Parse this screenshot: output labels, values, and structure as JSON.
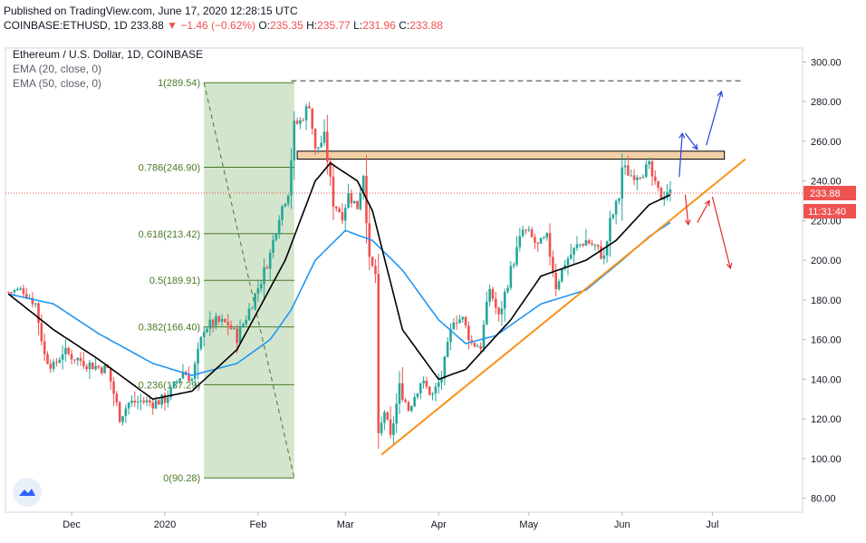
{
  "header": {
    "published": "Published on TradingView.com, June 17, 2020 12:28:15 UTC",
    "symbol": "COINBASE:ETHUSD, 1D",
    "last": "233.88",
    "change_arrow": "▼",
    "change": "−1.46 (−0.62%)",
    "o_label": "O:",
    "o_value": "235.35",
    "h_label": "H:",
    "h_value": "235.77",
    "l_label": "L:",
    "l_value": "231.96",
    "c_label": "C:",
    "c_value": "233.88"
  },
  "legend": {
    "title": "Ethereum / U.S. Dollar, 1D, COINBASE",
    "ema20": "EMA (20, close, 0)",
    "ema50": "EMA (50, close, 0)"
  },
  "badges": {
    "price": "233.88",
    "countdown": "11:31:40"
  },
  "logo_icon": "tradingview-logo-icon",
  "colors": {
    "up": "#26a69a",
    "down": "#ef5350",
    "ema20": "#000000",
    "ema50": "#2196f3",
    "trend": "#f7931a",
    "zone": "#f3cfa6",
    "fib": "#4a7a26",
    "fib_bg": "#d3e5cc",
    "arrow_up": "#2342e0",
    "arrow_down": "#e02b2b"
  },
  "chart_data": {
    "type": "candlestick",
    "title": "Ethereum / U.S. Dollar, 1D, COINBASE",
    "y_ticks": [
      80,
      100,
      120,
      140,
      160,
      180,
      200,
      220,
      240,
      260,
      280,
      300
    ],
    "y_tick_labels": [
      "80.00",
      "100.00",
      "120.00",
      "140.00",
      "160.00",
      "180.00",
      "200.00",
      "220.00",
      "240.00",
      "260.00",
      "280.00",
      "300.00"
    ],
    "ylim": [
      73,
      307
    ],
    "x_ticks": [
      {
        "date": "2019-12-01",
        "label": "Dec"
      },
      {
        "date": "2020-01-01",
        "label": "2020"
      },
      {
        "date": "2020-02-01",
        "label": "Feb"
      },
      {
        "date": "2020-03-01",
        "label": "Mar"
      },
      {
        "date": "2020-04-01",
        "label": "Apr"
      },
      {
        "date": "2020-05-01",
        "label": "May"
      },
      {
        "date": "2020-06-01",
        "label": "Jun"
      },
      {
        "date": "2020-07-01",
        "label": "Jul"
      }
    ],
    "xlim": [
      "2019-11-09",
      "2020-07-31"
    ],
    "last_price": 233.88,
    "fibonacci": {
      "start_date": "2020-01-14",
      "end_date": "2020-02-13",
      "levels": [
        {
          "ratio": "1",
          "price": 289.54,
          "label": "1(289.54)"
        },
        {
          "ratio": "0.786",
          "price": 246.9,
          "label": "0.786(246.90)"
        },
        {
          "ratio": "0.618",
          "price": 213.42,
          "label": "0.618(213.42)"
        },
        {
          "ratio": "0.5",
          "price": 189.91,
          "label": "0.5(189.91)"
        },
        {
          "ratio": "0.382",
          "price": 166.4,
          "label": "0.382(166.40)"
        },
        {
          "ratio": "0.236",
          "price": 137.29,
          "label": "0.236(137.29)"
        },
        {
          "ratio": "0",
          "price": 90.28,
          "label": "0(90.28)"
        }
      ]
    },
    "resistance_zone": {
      "start": "2020-02-14",
      "end": "2020-07-05",
      "low": 251,
      "high": 255
    },
    "dashed_high": {
      "start": "2020-02-12",
      "end": "2020-07-11",
      "price": 290.5
    },
    "trendline": {
      "start": "2020-03-13",
      "start_price": 102,
      "end": "2020-07-12",
      "end_price": 251
    },
    "arrows_up": [
      {
        "from": "2020-06-20",
        "from_price": 242,
        "to": "2020-06-21",
        "to_price": 264
      },
      {
        "from": "2020-06-22",
        "from_price": 264,
        "to": "2020-06-26",
        "to_price": 256
      },
      {
        "from": "2020-06-29",
        "from_price": 258,
        "to": "2020-07-04",
        "to_price": 285
      }
    ],
    "arrows_down": [
      {
        "from": "2020-06-22",
        "from_price": 233,
        "to": "2020-06-23",
        "to_price": 218
      },
      {
        "from": "2020-06-26",
        "from_price": 219,
        "to": "2020-06-30",
        "to_price": 230
      },
      {
        "from": "2020-07-01",
        "from_price": 232,
        "to": "2020-07-07",
        "to_price": 196
      }
    ],
    "ohlc_keypoints": [
      [
        "2019-11-10",
        184
      ],
      [
        "2019-11-15",
        185
      ],
      [
        "2019-11-19",
        178
      ],
      [
        "2019-11-22",
        152
      ],
      [
        "2019-11-25",
        146
      ],
      [
        "2019-11-28",
        154
      ],
      [
        "2019-12-02",
        151
      ],
      [
        "2019-12-06",
        148
      ],
      [
        "2019-12-10",
        146
      ],
      [
        "2019-12-13",
        145
      ],
      [
        "2019-12-17",
        121
      ],
      [
        "2019-12-20",
        128
      ],
      [
        "2019-12-24",
        129
      ],
      [
        "2019-12-28",
        128
      ],
      [
        "2020-01-01",
        130
      ],
      [
        "2020-01-03",
        134
      ],
      [
        "2020-01-07",
        144
      ],
      [
        "2020-01-10",
        140
      ],
      [
        "2020-01-14",
        166
      ],
      [
        "2020-01-18",
        169
      ],
      [
        "2020-01-22",
        168
      ],
      [
        "2020-01-25",
        161
      ],
      [
        "2020-01-29",
        175
      ],
      [
        "2020-02-02",
        190
      ],
      [
        "2020-02-05",
        203
      ],
      [
        "2020-02-08",
        223
      ],
      [
        "2020-02-11",
        235
      ],
      [
        "2020-02-13",
        268
      ],
      [
        "2020-02-15",
        270
      ],
      [
        "2020-02-18",
        279
      ],
      [
        "2020-02-20",
        255
      ],
      [
        "2020-02-23",
        262
      ],
      [
        "2020-02-26",
        229
      ],
      [
        "2020-02-29",
        223
      ],
      [
        "2020-03-02",
        233
      ],
      [
        "2020-03-05",
        227
      ],
      [
        "2020-03-07",
        244
      ],
      [
        "2020-03-09",
        199
      ],
      [
        "2020-03-11",
        193
      ],
      [
        "2020-03-12",
        110
      ],
      [
        "2020-03-14",
        124
      ],
      [
        "2020-03-16",
        110
      ],
      [
        "2020-03-19",
        136
      ],
      [
        "2020-03-22",
        125
      ],
      [
        "2020-03-26",
        139
      ],
      [
        "2020-03-30",
        132
      ],
      [
        "2020-04-02",
        141
      ],
      [
        "2020-04-06",
        171
      ],
      [
        "2020-04-09",
        170
      ],
      [
        "2020-04-12",
        158
      ],
      [
        "2020-04-15",
        157
      ],
      [
        "2020-04-18",
        186
      ],
      [
        "2020-04-21",
        171
      ],
      [
        "2020-04-25",
        195
      ],
      [
        "2020-04-29",
        215
      ],
      [
        "2020-05-01",
        213
      ],
      [
        "2020-05-04",
        207
      ],
      [
        "2020-05-07",
        211
      ],
      [
        "2020-05-10",
        187
      ],
      [
        "2020-05-13",
        199
      ],
      [
        "2020-05-17",
        207
      ],
      [
        "2020-05-20",
        210
      ],
      [
        "2020-05-23",
        207
      ],
      [
        "2020-05-26",
        201
      ],
      [
        "2020-05-28",
        219
      ],
      [
        "2020-05-31",
        232
      ],
      [
        "2020-06-01",
        247
      ],
      [
        "2020-06-04",
        243
      ],
      [
        "2020-06-07",
        244
      ],
      [
        "2020-06-10",
        247
      ],
      [
        "2020-06-12",
        237
      ],
      [
        "2020-06-14",
        232
      ],
      [
        "2020-06-16",
        235
      ],
      [
        "2020-06-17",
        233.88
      ]
    ],
    "ema20_keypoints": [
      [
        "2019-11-10",
        183
      ],
      [
        "2019-11-25",
        165
      ],
      [
        "2019-12-10",
        150
      ],
      [
        "2019-12-28",
        130
      ],
      [
        "2020-01-10",
        134
      ],
      [
        "2020-01-25",
        155
      ],
      [
        "2020-02-10",
        200
      ],
      [
        "2020-02-20",
        240
      ],
      [
        "2020-02-25",
        249
      ],
      [
        "2020-03-05",
        240
      ],
      [
        "2020-03-10",
        225
      ],
      [
        "2020-03-20",
        165
      ],
      [
        "2020-04-01",
        140
      ],
      [
        "2020-04-10",
        145
      ],
      [
        "2020-04-25",
        170
      ],
      [
        "2020-05-05",
        192
      ],
      [
        "2020-05-20",
        200
      ],
      [
        "2020-05-30",
        210
      ],
      [
        "2020-06-10",
        228
      ],
      [
        "2020-06-17",
        233
      ]
    ],
    "ema50_keypoints": [
      [
        "2019-11-10",
        183
      ],
      [
        "2019-11-25",
        178
      ],
      [
        "2019-12-10",
        163
      ],
      [
        "2019-12-28",
        148
      ],
      [
        "2020-01-10",
        142
      ],
      [
        "2020-01-25",
        148
      ],
      [
        "2020-02-05",
        160
      ],
      [
        "2020-02-12",
        175
      ],
      [
        "2020-02-20",
        200
      ],
      [
        "2020-03-01",
        215
      ],
      [
        "2020-03-10",
        210
      ],
      [
        "2020-03-20",
        195
      ],
      [
        "2020-04-01",
        170
      ],
      [
        "2020-04-10",
        158
      ],
      [
        "2020-04-20",
        162
      ],
      [
        "2020-05-05",
        178
      ],
      [
        "2020-05-20",
        185
      ],
      [
        "2020-06-01",
        200
      ],
      [
        "2020-06-10",
        212
      ],
      [
        "2020-06-17",
        219
      ]
    ]
  }
}
